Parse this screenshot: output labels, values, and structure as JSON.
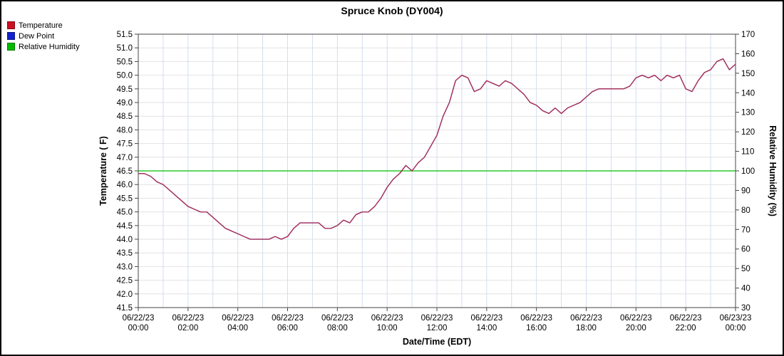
{
  "title": "Spruce Knob (DY004)",
  "legend": [
    {
      "label": "Temperature",
      "color": "#cc1122"
    },
    {
      "label": "Dew Point",
      "color": "#1122cc"
    },
    {
      "label": "Relative Humidity",
      "color": "#00bb00"
    }
  ],
  "chart_data": {
    "type": "line",
    "title": "Spruce Knob (DY004)",
    "xlabel": "Date/Time (EDT)",
    "ylabel_left": "Temperature ( F)",
    "ylabel_right": "Relative Humidity (%)",
    "x_range": [
      0,
      24
    ],
    "x_step_hours": 0.25,
    "y_left": {
      "min": 41.5,
      "max": 51.5,
      "step": 0.5
    },
    "y_right": {
      "min": 30,
      "max": 170,
      "step": 10
    },
    "grid": {
      "vertical_every_hours": 1,
      "h_color": "#e2e2e2",
      "v_color": "#d4ddf0"
    },
    "x_ticks": [
      {
        "hour": 0,
        "date": "06/22/23",
        "time": "00:00"
      },
      {
        "hour": 2,
        "date": "06/22/23",
        "time": "02:00"
      },
      {
        "hour": 4,
        "date": "06/22/23",
        "time": "04:00"
      },
      {
        "hour": 6,
        "date": "06/22/23",
        "time": "06:00"
      },
      {
        "hour": 8,
        "date": "06/22/23",
        "time": "08:00"
      },
      {
        "hour": 10,
        "date": "06/22/23",
        "time": "10:00"
      },
      {
        "hour": 12,
        "date": "06/22/23",
        "time": "12:00"
      },
      {
        "hour": 14,
        "date": "06/22/23",
        "time": "14:00"
      },
      {
        "hour": 16,
        "date": "06/22/23",
        "time": "16:00"
      },
      {
        "hour": 18,
        "date": "06/22/23",
        "time": "18:00"
      },
      {
        "hour": 20,
        "date": "06/22/23",
        "time": "20:00"
      },
      {
        "hour": 22,
        "date": "06/22/23",
        "time": "22:00"
      },
      {
        "hour": 24,
        "date": "06/23/23",
        "time": "00:00"
      }
    ],
    "series": [
      {
        "name": "Relative Humidity",
        "color": "#00c000",
        "axis": "right",
        "constant": 100
      },
      {
        "name": "Dew Point",
        "color": "#1122cc",
        "axis": "left",
        "values_from": "Temperature"
      },
      {
        "name": "Temperature",
        "color": "#b02e50",
        "axis": "left",
        "values": [
          46.4,
          46.4,
          46.3,
          46.1,
          46.0,
          45.8,
          45.6,
          45.4,
          45.2,
          45.1,
          45.0,
          45.0,
          44.8,
          44.6,
          44.4,
          44.3,
          44.2,
          44.1,
          44.0,
          44.0,
          44.0,
          44.0,
          44.1,
          44.0,
          44.1,
          44.4,
          44.6,
          44.6,
          44.6,
          44.6,
          44.4,
          44.4,
          44.5,
          44.7,
          44.6,
          44.9,
          45.0,
          45.0,
          45.2,
          45.5,
          45.9,
          46.2,
          46.4,
          46.7,
          46.5,
          46.8,
          47.0,
          47.4,
          47.8,
          48.5,
          49.0,
          49.8,
          50.0,
          49.9,
          49.4,
          49.5,
          49.8,
          49.7,
          49.6,
          49.8,
          49.7,
          49.5,
          49.3,
          49.0,
          48.9,
          48.7,
          48.6,
          48.8,
          48.6,
          48.8,
          48.9,
          49.0,
          49.2,
          49.4,
          49.5,
          49.5,
          49.5,
          49.5,
          49.5,
          49.6,
          49.9,
          50.0,
          49.9,
          50.0,
          49.8,
          50.0,
          49.9,
          50.0,
          49.5,
          49.4,
          49.8,
          50.1,
          50.2,
          50.5,
          50.6,
          50.2,
          50.4
        ]
      }
    ]
  }
}
